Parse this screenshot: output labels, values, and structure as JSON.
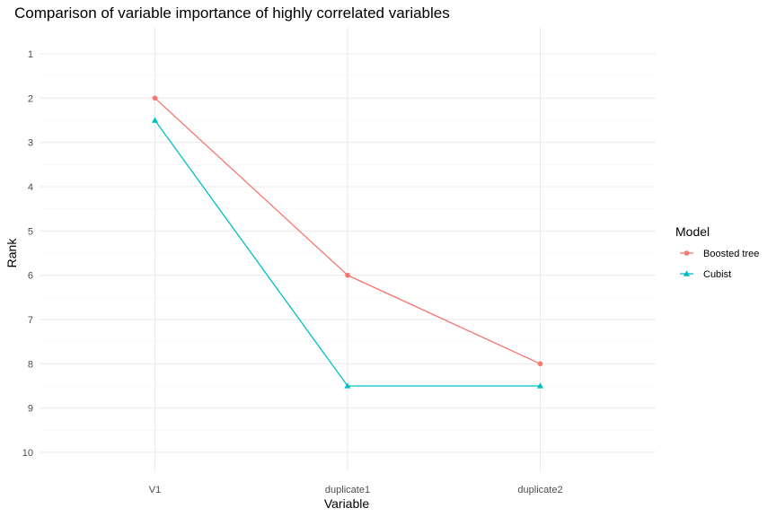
{
  "chart_data": {
    "type": "line",
    "title": "Comparison of variable importance of highly correlated variables",
    "xlabel": "Variable",
    "ylabel": "Rank",
    "categories": [
      "V1",
      "duplicate1",
      "duplicate2"
    ],
    "y_ticks": [
      1,
      2,
      3,
      4,
      5,
      6,
      7,
      8,
      9,
      10
    ],
    "ylim": [
      1,
      10
    ],
    "y_reversed": true,
    "grid": true,
    "legend": {
      "title": "Model",
      "position": "right"
    },
    "series": [
      {
        "name": "Boosted tree",
        "values": [
          2,
          6,
          8
        ],
        "color": "#f8766d",
        "marker": "circle"
      },
      {
        "name": "Cubist",
        "values": [
          2.5,
          8.5,
          8.5
        ],
        "color": "#00bfc4",
        "marker": "triangle"
      }
    ]
  }
}
